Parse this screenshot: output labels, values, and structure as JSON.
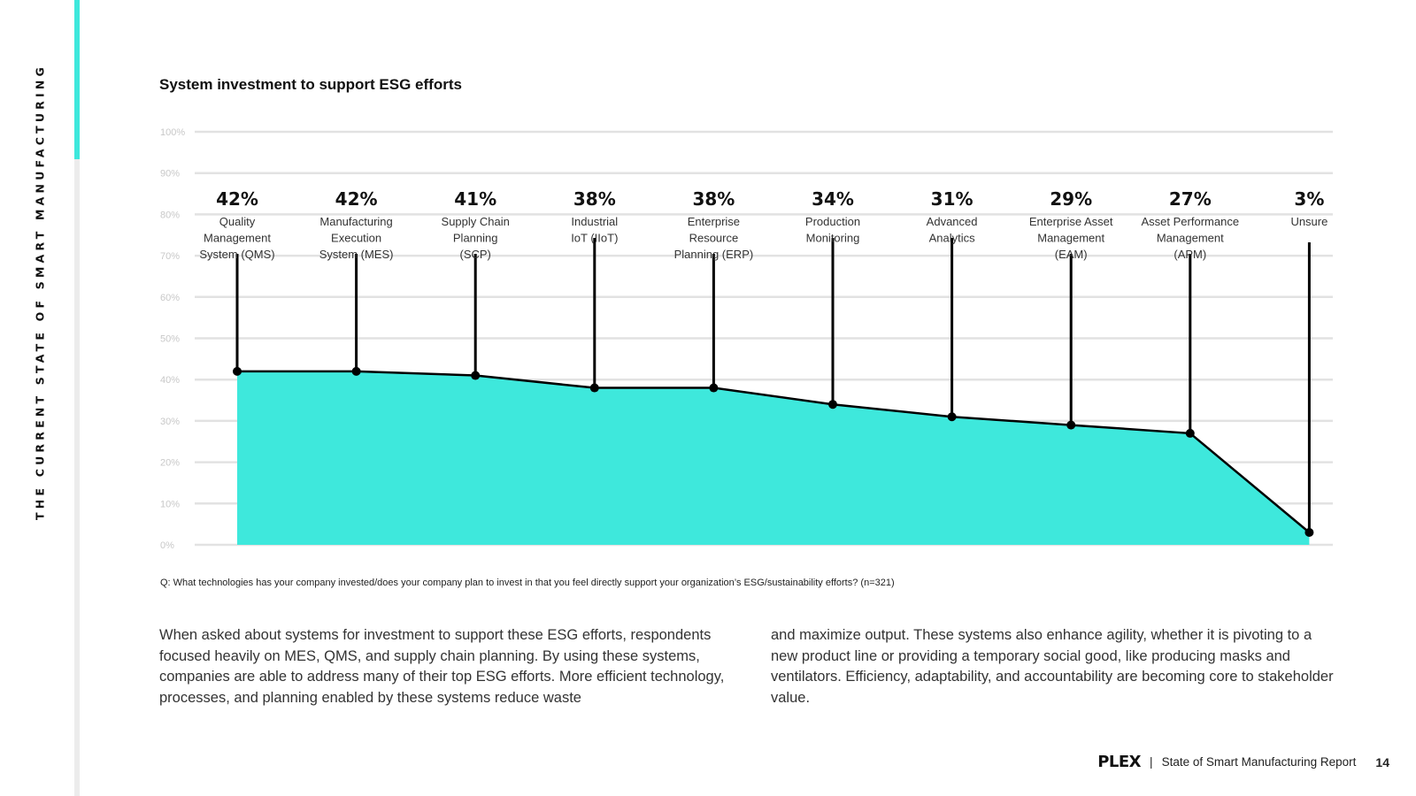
{
  "side_title": "THE CURRENT STATE OF SMART MANUFACTURING",
  "colors": {
    "accent": "#3ee8dc",
    "grid": "#e2e2e2",
    "line": "#000000"
  },
  "chart_data": {
    "type": "area",
    "title": "System investment to support ESG efforts",
    "y_ticks": [
      "100%",
      "90%",
      "80%",
      "70%",
      "60%",
      "50%",
      "40%",
      "30%",
      "20%",
      "10%",
      "0%"
    ],
    "ylim": [
      0,
      100
    ],
    "grid": true,
    "categories": [
      {
        "value_label": "42%",
        "label_lines": [
          "Quality",
          "Management",
          "System (QMS)"
        ]
      },
      {
        "value_label": "42%",
        "label_lines": [
          "Manufacturing",
          "Execution",
          "System (MES)"
        ]
      },
      {
        "value_label": "41%",
        "label_lines": [
          "Supply Chain",
          "Planning",
          "(SCP)"
        ]
      },
      {
        "value_label": "38%",
        "label_lines": [
          "Industrial",
          "IoT (IIoT)"
        ]
      },
      {
        "value_label": "38%",
        "label_lines": [
          "Enterprise",
          "Resource",
          "Planning (ERP)"
        ]
      },
      {
        "value_label": "34%",
        "label_lines": [
          "Production",
          "Monitoring"
        ]
      },
      {
        "value_label": "31%",
        "label_lines": [
          "Advanced",
          "Analytics"
        ]
      },
      {
        "value_label": "29%",
        "label_lines": [
          "Enterprise Asset",
          "Management",
          "(EAM)"
        ]
      },
      {
        "value_label": "27%",
        "label_lines": [
          "Asset Performance",
          "Management",
          "(APM)"
        ]
      },
      {
        "value_label": "3%",
        "label_lines": [
          "Unsure"
        ]
      }
    ],
    "values": [
      42,
      42,
      41,
      38,
      38,
      34,
      31,
      29,
      27,
      3
    ]
  },
  "question": "Q: What technologies has your company invested/does your company plan to invest in that you feel directly support your organization’s ESG/sustainability efforts? (n=321)",
  "body_left": "When asked about systems for investment to support these ESG efforts, respondents focused heavily on MES, QMS, and supply chain planning. By using these systems, companies are able to address many of their top ESG efforts. More efficient technology, processes, and planning enabled by these systems reduce waste",
  "body_right": "and maximize output. These systems also enhance agility, whether it is pivoting to a new product line or providing a temporary social good, like producing masks and ventilators. Efficiency, adaptability, and accountability are becoming core to stakeholder value.",
  "footer": {
    "logo": "PLEX",
    "separator": "|",
    "report": "State of Smart Manufacturing Report",
    "page": "14"
  }
}
